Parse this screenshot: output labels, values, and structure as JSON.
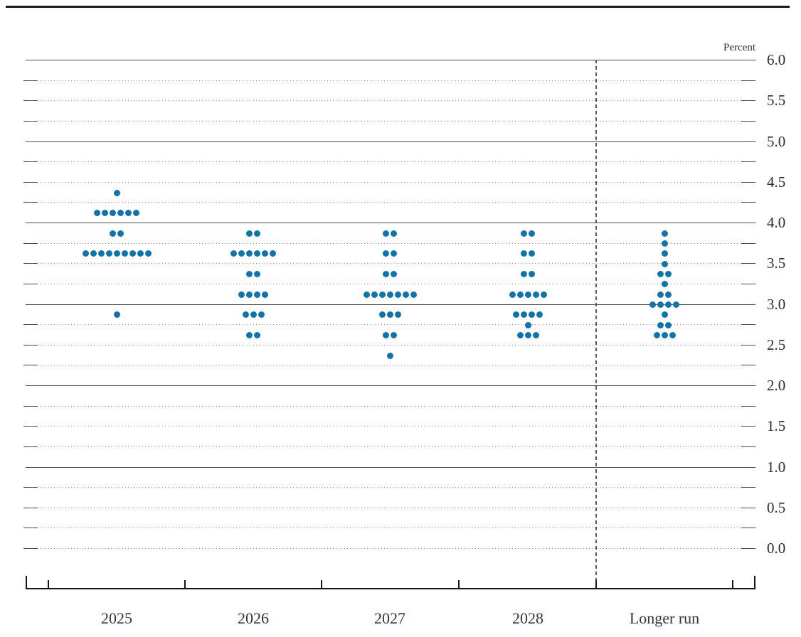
{
  "figure": {
    "unit_label": "Percent",
    "colors": {
      "dot": "#1273A8",
      "grid_solid": "#4a4a4a",
      "grid_dotted": "#8f8f8f",
      "axis": "#161616",
      "text": "#2d2d2d"
    }
  },
  "chart_data": {
    "type": "scatter",
    "subtype": "fomc-dot-plot",
    "title": "",
    "ylabel": "Percent",
    "ylim": [
      0.0,
      6.0
    ],
    "y_grid_step": 0.25,
    "y_label_step": 0.5,
    "y_tick_labels": [
      "6.0",
      "5.5",
      "5.0",
      "4.5",
      "4.0",
      "3.5",
      "3.0",
      "2.5",
      "2.0",
      "1.5",
      "1.0",
      "0.5",
      "0.0"
    ],
    "grid": "solid lines at integers 1.0-6.0, dotted lines at quarter-point levels",
    "legend_position": "none",
    "categories": [
      "2025",
      "2026",
      "2027",
      "2028",
      "Longer run"
    ],
    "separator_before_category": "Longer run",
    "series": [
      {
        "name": "2025",
        "dots": [
          {
            "value": 4.375,
            "count": 1
          },
          {
            "value": 4.125,
            "count": 6
          },
          {
            "value": 3.875,
            "count": 2
          },
          {
            "value": 3.625,
            "count": 9
          },
          {
            "value": 2.875,
            "count": 1
          }
        ]
      },
      {
        "name": "2026",
        "dots": [
          {
            "value": 3.875,
            "count": 2
          },
          {
            "value": 3.625,
            "count": 6
          },
          {
            "value": 3.375,
            "count": 2
          },
          {
            "value": 3.125,
            "count": 4
          },
          {
            "value": 2.875,
            "count": 3
          },
          {
            "value": 2.625,
            "count": 2
          }
        ]
      },
      {
        "name": "2027",
        "dots": [
          {
            "value": 3.875,
            "count": 2
          },
          {
            "value": 3.625,
            "count": 2
          },
          {
            "value": 3.375,
            "count": 2
          },
          {
            "value": 3.125,
            "count": 7
          },
          {
            "value": 2.875,
            "count": 3
          },
          {
            "value": 2.625,
            "count": 2
          },
          {
            "value": 2.375,
            "count": 1
          }
        ]
      },
      {
        "name": "2028",
        "dots": [
          {
            "value": 3.875,
            "count": 2
          },
          {
            "value": 3.625,
            "count": 2
          },
          {
            "value": 3.375,
            "count": 2
          },
          {
            "value": 3.125,
            "count": 5
          },
          {
            "value": 2.875,
            "count": 4
          },
          {
            "value": 2.75,
            "count": 1
          },
          {
            "value": 2.625,
            "count": 3
          }
        ]
      },
      {
        "name": "Longer run",
        "dots": [
          {
            "value": 3.875,
            "count": 1
          },
          {
            "value": 3.75,
            "count": 1
          },
          {
            "value": 3.625,
            "count": 1
          },
          {
            "value": 3.5,
            "count": 1
          },
          {
            "value": 3.375,
            "count": 2
          },
          {
            "value": 3.25,
            "count": 1
          },
          {
            "value": 3.125,
            "count": 2
          },
          {
            "value": 3.0,
            "count": 4
          },
          {
            "value": 2.875,
            "count": 1
          },
          {
            "value": 2.75,
            "count": 2
          },
          {
            "value": 2.625,
            "count": 3
          }
        ]
      }
    ]
  }
}
